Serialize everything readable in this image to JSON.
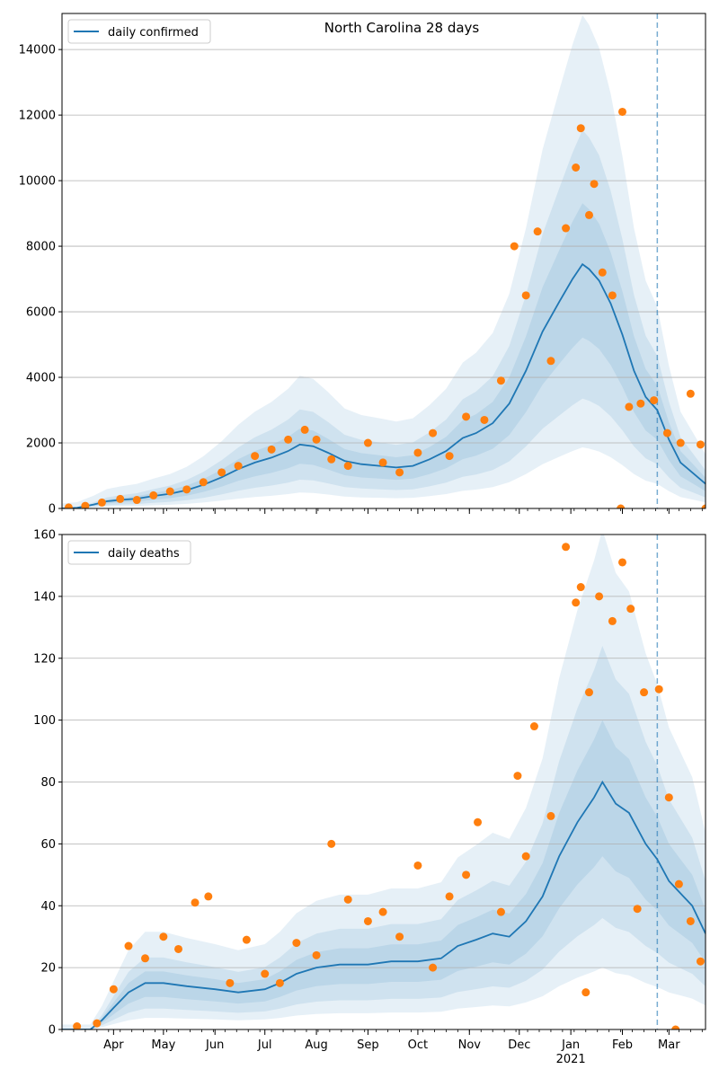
{
  "chart_data": [
    {
      "type": "line",
      "title": "North Carolina 28 days",
      "xlabel": "",
      "ylabel": "",
      "ylim": [
        0,
        15100
      ],
      "yticks": [
        0,
        2000,
        4000,
        6000,
        8000,
        10000,
        12000,
        14000
      ],
      "grid": "horizontal",
      "legend_position": "top-left",
      "forecast_start": "2021-02-22",
      "series": [
        {
          "name": "daily confirmed",
          "color": "#1f77b4",
          "points": [
            [
              "2020-03-01",
              0
            ],
            [
              "2020-03-10",
              20
            ],
            [
              "2020-03-20",
              120
            ],
            [
              "2020-03-28",
              220
            ],
            [
              "2020-04-05",
              260
            ],
            [
              "2020-04-15",
              300
            ],
            [
              "2020-04-25",
              380
            ],
            [
              "2020-05-05",
              450
            ],
            [
              "2020-05-15",
              560
            ],
            [
              "2020-05-25",
              720
            ],
            [
              "2020-06-05",
              950
            ],
            [
              "2020-06-15",
              1200
            ],
            [
              "2020-06-25",
              1400
            ],
            [
              "2020-07-05",
              1550
            ],
            [
              "2020-07-15",
              1750
            ],
            [
              "2020-07-22",
              1950
            ],
            [
              "2020-07-30",
              1900
            ],
            [
              "2020-08-08",
              1700
            ],
            [
              "2020-08-18",
              1450
            ],
            [
              "2020-08-28",
              1350
            ],
            [
              "2020-09-08",
              1300
            ],
            [
              "2020-09-18",
              1250
            ],
            [
              "2020-09-28",
              1300
            ],
            [
              "2020-10-08",
              1500
            ],
            [
              "2020-10-18",
              1750
            ],
            [
              "2020-10-28",
              2150
            ],
            [
              "2020-11-05",
              2300
            ],
            [
              "2020-11-15",
              2600
            ],
            [
              "2020-11-25",
              3200
            ],
            [
              "2020-12-05",
              4200
            ],
            [
              "2020-12-15",
              5400
            ],
            [
              "2020-12-25",
              6300
            ],
            [
              "2021-01-02",
              7000
            ],
            [
              "2021-01-08",
              7450
            ],
            [
              "2021-01-12",
              7300
            ],
            [
              "2021-01-18",
              6950
            ],
            [
              "2021-01-25",
              6250
            ],
            [
              "2021-02-01",
              5300
            ],
            [
              "2021-02-08",
              4200
            ],
            [
              "2021-02-15",
              3400
            ],
            [
              "2021-02-22",
              3000
            ],
            [
              "2021-03-01",
              2100
            ],
            [
              "2021-03-08",
              1400
            ],
            [
              "2021-03-15",
              1100
            ],
            [
              "2021-03-23",
              750
            ]
          ],
          "observed": [
            [
              "2020-03-05",
              30
            ],
            [
              "2020-03-15",
              80
            ],
            [
              "2020-03-25",
              180
            ],
            [
              "2020-04-05",
              290
            ],
            [
              "2020-04-15",
              260
            ],
            [
              "2020-04-25",
              400
            ],
            [
              "2020-05-05",
              520
            ],
            [
              "2020-05-15",
              580
            ],
            [
              "2020-05-25",
              800
            ],
            [
              "2020-06-05",
              1100
            ],
            [
              "2020-06-15",
              1300
            ],
            [
              "2020-06-25",
              1600
            ],
            [
              "2020-07-05",
              1800
            ],
            [
              "2020-07-15",
              2100
            ],
            [
              "2020-07-25",
              2400
            ],
            [
              "2020-08-01",
              2100
            ],
            [
              "2020-08-10",
              1500
            ],
            [
              "2020-08-20",
              1300
            ],
            [
              "2020-09-01",
              2000
            ],
            [
              "2020-09-10",
              1400
            ],
            [
              "2020-09-20",
              1100
            ],
            [
              "2020-10-01",
              1700
            ],
            [
              "2020-10-10",
              2300
            ],
            [
              "2020-10-20",
              1600
            ],
            [
              "2020-10-30",
              2800
            ],
            [
              "2020-11-10",
              2700
            ],
            [
              "2020-11-20",
              3900
            ],
            [
              "2020-11-28",
              8000
            ],
            [
              "2020-12-05",
              6500
            ],
            [
              "2020-12-12",
              8450
            ],
            [
              "2020-12-20",
              4500
            ],
            [
              "2020-12-29",
              8550
            ],
            [
              "2021-01-04",
              10400
            ],
            [
              "2021-01-07",
              11600
            ],
            [
              "2021-01-12",
              8950
            ],
            [
              "2021-01-15",
              9900
            ],
            [
              "2021-01-20",
              7200
            ],
            [
              "2021-01-26",
              6500
            ],
            [
              "2021-02-01",
              12100
            ],
            [
              "2021-02-05",
              3100
            ],
            [
              "2021-02-12",
              3200
            ],
            [
              "2021-02-20",
              3300
            ],
            [
              "2021-02-28",
              2300
            ],
            [
              "2021-03-08",
              2000
            ],
            [
              "2021-03-14",
              3500
            ],
            [
              "2021-03-20",
              1950
            ],
            [
              "2021-01-31",
              0
            ],
            [
              "2021-03-23",
              0
            ]
          ]
        }
      ]
    },
    {
      "type": "line",
      "title": "",
      "xlabel": "",
      "ylabel": "",
      "ylim": [
        0,
        160
      ],
      "yticks": [
        0,
        20,
        40,
        60,
        80,
        100,
        120,
        140,
        160
      ],
      "grid": "horizontal",
      "legend_position": "top-left",
      "forecast_start": "2021-02-22",
      "series": [
        {
          "name": "daily deaths",
          "color": "#1f77b4",
          "points": [
            [
              "2020-03-01",
              0
            ],
            [
              "2020-03-18",
              0
            ],
            [
              "2020-03-25",
              3
            ],
            [
              "2020-04-01",
              7
            ],
            [
              "2020-04-10",
              12
            ],
            [
              "2020-04-20",
              15
            ],
            [
              "2020-05-01",
              15
            ],
            [
              "2020-05-15",
              14
            ],
            [
              "2020-06-01",
              13
            ],
            [
              "2020-06-15",
              12
            ],
            [
              "2020-07-01",
              13
            ],
            [
              "2020-07-10",
              15
            ],
            [
              "2020-07-20",
              18
            ],
            [
              "2020-08-01",
              20
            ],
            [
              "2020-08-15",
              21
            ],
            [
              "2020-09-01",
              21
            ],
            [
              "2020-09-15",
              22
            ],
            [
              "2020-10-01",
              22
            ],
            [
              "2020-10-15",
              23
            ],
            [
              "2020-10-25",
              27
            ],
            [
              "2020-11-05",
              29
            ],
            [
              "2020-11-15",
              31
            ],
            [
              "2020-11-25",
              30
            ],
            [
              "2020-12-05",
              35
            ],
            [
              "2020-12-15",
              43
            ],
            [
              "2020-12-25",
              56
            ],
            [
              "2021-01-05",
              67
            ],
            [
              "2021-01-15",
              75
            ],
            [
              "2021-01-20",
              80
            ],
            [
              "2021-01-28",
              73
            ],
            [
              "2021-02-05",
              70
            ],
            [
              "2021-02-15",
              60
            ],
            [
              "2021-02-22",
              55
            ],
            [
              "2021-03-01",
              48
            ],
            [
              "2021-03-08",
              44
            ],
            [
              "2021-03-15",
              40
            ],
            [
              "2021-03-23",
              31
            ]
          ],
          "observed": [
            [
              "2020-03-10",
              1
            ],
            [
              "2020-03-22",
              2
            ],
            [
              "2020-04-01",
              13
            ],
            [
              "2020-04-10",
              27
            ],
            [
              "2020-04-20",
              23
            ],
            [
              "2020-05-01",
              30
            ],
            [
              "2020-05-10",
              26
            ],
            [
              "2020-05-20",
              41
            ],
            [
              "2020-05-28",
              43
            ],
            [
              "2020-06-10",
              15
            ],
            [
              "2020-06-20",
              29
            ],
            [
              "2020-07-01",
              18
            ],
            [
              "2020-07-10",
              15
            ],
            [
              "2020-07-20",
              28
            ],
            [
              "2020-08-01",
              24
            ],
            [
              "2020-08-10",
              60
            ],
            [
              "2020-08-20",
              42
            ],
            [
              "2020-09-01",
              35
            ],
            [
              "2020-09-10",
              38
            ],
            [
              "2020-09-20",
              30
            ],
            [
              "2020-10-01",
              53
            ],
            [
              "2020-10-10",
              20
            ],
            [
              "2020-10-20",
              43
            ],
            [
              "2020-10-30",
              50
            ],
            [
              "2020-11-06",
              67
            ],
            [
              "2020-11-20",
              38
            ],
            [
              "2020-11-30",
              82
            ],
            [
              "2020-12-05",
              56
            ],
            [
              "2020-12-10",
              98
            ],
            [
              "2020-12-20",
              69
            ],
            [
              "2020-12-29",
              156
            ],
            [
              "2021-01-04",
              138
            ],
            [
              "2021-01-07",
              143
            ],
            [
              "2021-01-12",
              109
            ],
            [
              "2021-01-18",
              140
            ],
            [
              "2021-01-26",
              132
            ],
            [
              "2021-02-01",
              151
            ],
            [
              "2021-02-06",
              136
            ],
            [
              "2021-02-14",
              109
            ],
            [
              "2021-02-23",
              110
            ],
            [
              "2021-03-01",
              75
            ],
            [
              "2021-03-07",
              47
            ],
            [
              "2021-03-14",
              35
            ],
            [
              "2021-03-20",
              22
            ],
            [
              "2021-01-10",
              12
            ],
            [
              "2021-02-10",
              39
            ],
            [
              "2021-03-05",
              0
            ]
          ]
        }
      ]
    }
  ],
  "x_axis": {
    "domain": [
      "2020-03-01",
      "2021-03-23"
    ],
    "ticks": [
      {
        "date": "2020-04-01",
        "label": "Apr"
      },
      {
        "date": "2020-05-01",
        "label": "May"
      },
      {
        "date": "2020-06-01",
        "label": "Jun"
      },
      {
        "date": "2020-07-01",
        "label": "Jul"
      },
      {
        "date": "2020-08-01",
        "label": "Aug"
      },
      {
        "date": "2020-09-01",
        "label": "Sep"
      },
      {
        "date": "2020-10-01",
        "label": "Oct"
      },
      {
        "date": "2020-11-01",
        "label": "Nov"
      },
      {
        "date": "2020-12-01",
        "label": "Dec"
      },
      {
        "date": "2021-01-01",
        "label": "Jan"
      },
      {
        "date": "2021-02-01",
        "label": "Feb"
      },
      {
        "date": "2021-03-01",
        "label": "Mar"
      }
    ],
    "year_label": {
      "date": "2021-01-01",
      "label": "2021"
    }
  },
  "colors": {
    "line": "#1f77b4",
    "markers": "#ff7f0e",
    "band": "#1f77b4",
    "grid": "#b0b0b0"
  }
}
